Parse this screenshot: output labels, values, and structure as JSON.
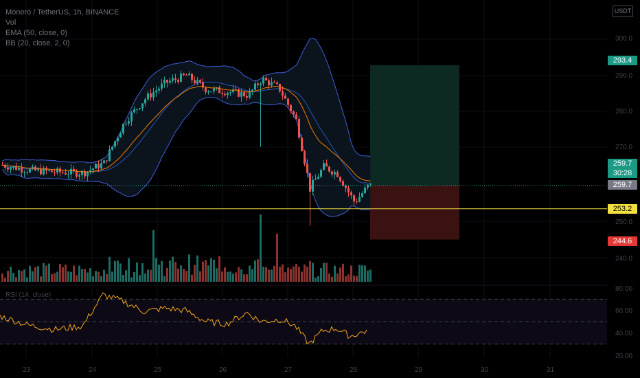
{
  "header": {
    "symbol_line": "Monero / TetherUS, 1h, BINANCE",
    "vol_label": "Vol",
    "ema_label": "EMA (50, close, 0)",
    "bb_label": "BB (20, close, 2, 0)",
    "currency": "USDT"
  },
  "price_axis": {
    "ticks": [
      "300.0",
      "290.0",
      "280.0",
      "270.0",
      "250.0",
      "240.0"
    ]
  },
  "rsi_axis": {
    "ticks": [
      "80.00",
      "60.00",
      "40.00",
      "20.00"
    ]
  },
  "rsi_label": "RSI (14, close)",
  "time_axis": {
    "ticks": [
      "23",
      "24",
      "25",
      "26",
      "27",
      "28",
      "29",
      "30",
      "31"
    ]
  },
  "price_tags": {
    "take_profit": "293.4",
    "current": "259.7",
    "countdown": "30:28",
    "last": "259.7",
    "support": "253.2",
    "stop_loss": "244.6"
  },
  "colors": {
    "up": "#26a69a",
    "down": "#ef5350",
    "ema": "#f57c00",
    "bb": "#3f5fd9",
    "rsi": "#f5a623",
    "support": "#f0e040",
    "profit_zone": "#0c2a22",
    "loss_zone": "#3a1212"
  },
  "chart_data": {
    "type": "candlestick",
    "timeframe": "1h",
    "close_anchor_points": [
      [
        0,
        265.5
      ],
      [
        40,
        264.0
      ],
      [
        80,
        263.5
      ],
      [
        120,
        263.2
      ],
      [
        150,
        266.0
      ],
      [
        180,
        277.5
      ],
      [
        210,
        284.0
      ],
      [
        240,
        288.5
      ],
      [
        270,
        290.5
      ],
      [
        300,
        286.5
      ],
      [
        330,
        286.0
      ],
      [
        360,
        285.0
      ],
      [
        380,
        289.5
      ],
      [
        405,
        287.0
      ],
      [
        430,
        278.0
      ],
      [
        450,
        259.0
      ],
      [
        470,
        265.0
      ],
      [
        490,
        263.0
      ],
      [
        515,
        255.0
      ],
      [
        535,
        259.7
      ]
    ],
    "rsi_anchor_points": [
      [
        0,
        55
      ],
      [
        40,
        47
      ],
      [
        80,
        43
      ],
      [
        120,
        46
      ],
      [
        150,
        74
      ],
      [
        180,
        68
      ],
      [
        210,
        59
      ],
      [
        240,
        62
      ],
      [
        270,
        60
      ],
      [
        300,
        50
      ],
      [
        330,
        48
      ],
      [
        360,
        58
      ],
      [
        380,
        50
      ],
      [
        410,
        52
      ],
      [
        430,
        46
      ],
      [
        450,
        30
      ],
      [
        470,
        42
      ],
      [
        490,
        44
      ],
      [
        510,
        37
      ],
      [
        535,
        42
      ]
    ],
    "horizontal_lines": {
      "support": 253.2,
      "current": 259.7
    },
    "position": {
      "entry": 259.7,
      "take_profit": 293.4,
      "stop_loss": 244.6
    },
    "rsi_levels": [
      70,
      50,
      30
    ]
  }
}
